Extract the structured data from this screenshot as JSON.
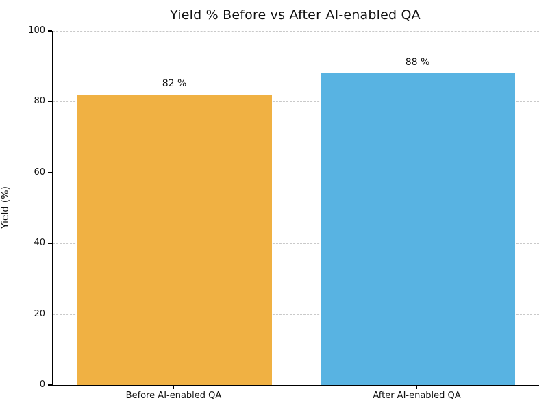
{
  "chart_data": {
    "type": "bar",
    "title": "Yield % Before vs After AI-enabled QA",
    "categories": [
      "Before AI-enabled QA",
      "After AI-enabled QA"
    ],
    "values": [
      82,
      88
    ],
    "bar_labels": [
      "82 %",
      "88 %"
    ],
    "bar_colors": [
      "#F0B143",
      "#58B3E2"
    ],
    "xlabel": "",
    "ylabel": "Yield (%)",
    "ylim": [
      0,
      100
    ],
    "yticks": [
      0,
      20,
      40,
      60,
      80,
      100
    ],
    "grid": "horizontal-dashed",
    "gridline_color": "#c9c9c9",
    "legend_position": "none",
    "background_color": "#ffffff"
  }
}
